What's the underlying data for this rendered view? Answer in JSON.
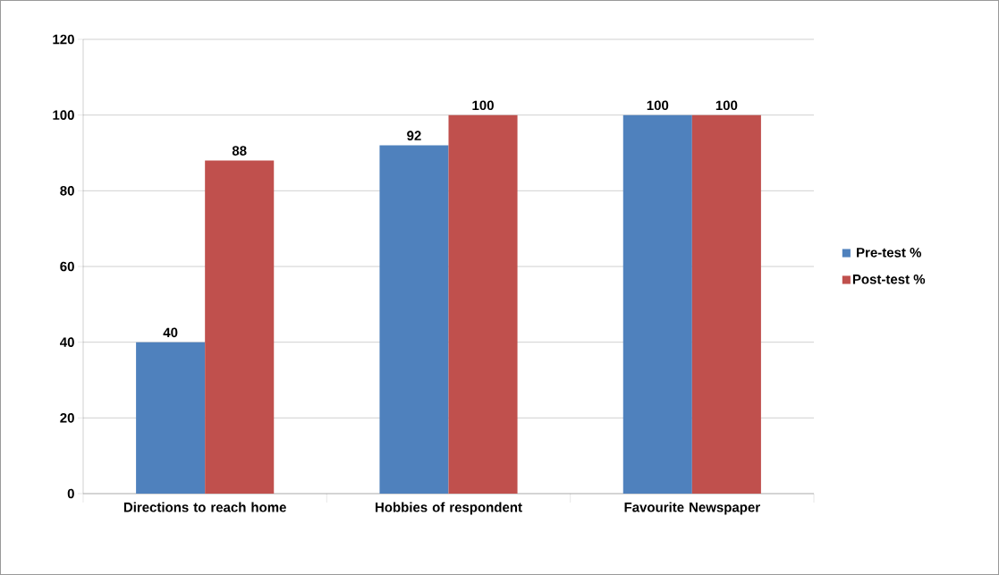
{
  "chart_data": {
    "type": "bar",
    "categories": [
      "Directions to reach home",
      "Hobbies of respondent",
      "Favourite Newspaper"
    ],
    "series": [
      {
        "name": "Pre-test %",
        "color": "#4f81bd",
        "values": [
          40,
          92,
          100
        ]
      },
      {
        "name": "Post-test  %",
        "color": "#c0504d",
        "values": [
          88,
          100,
          100
        ]
      }
    ],
    "ylim": [
      0,
      120
    ],
    "yticks": [
      0,
      20,
      40,
      60,
      80,
      100,
      120
    ],
    "grid": "y",
    "legend": "right",
    "data_labels": true
  }
}
